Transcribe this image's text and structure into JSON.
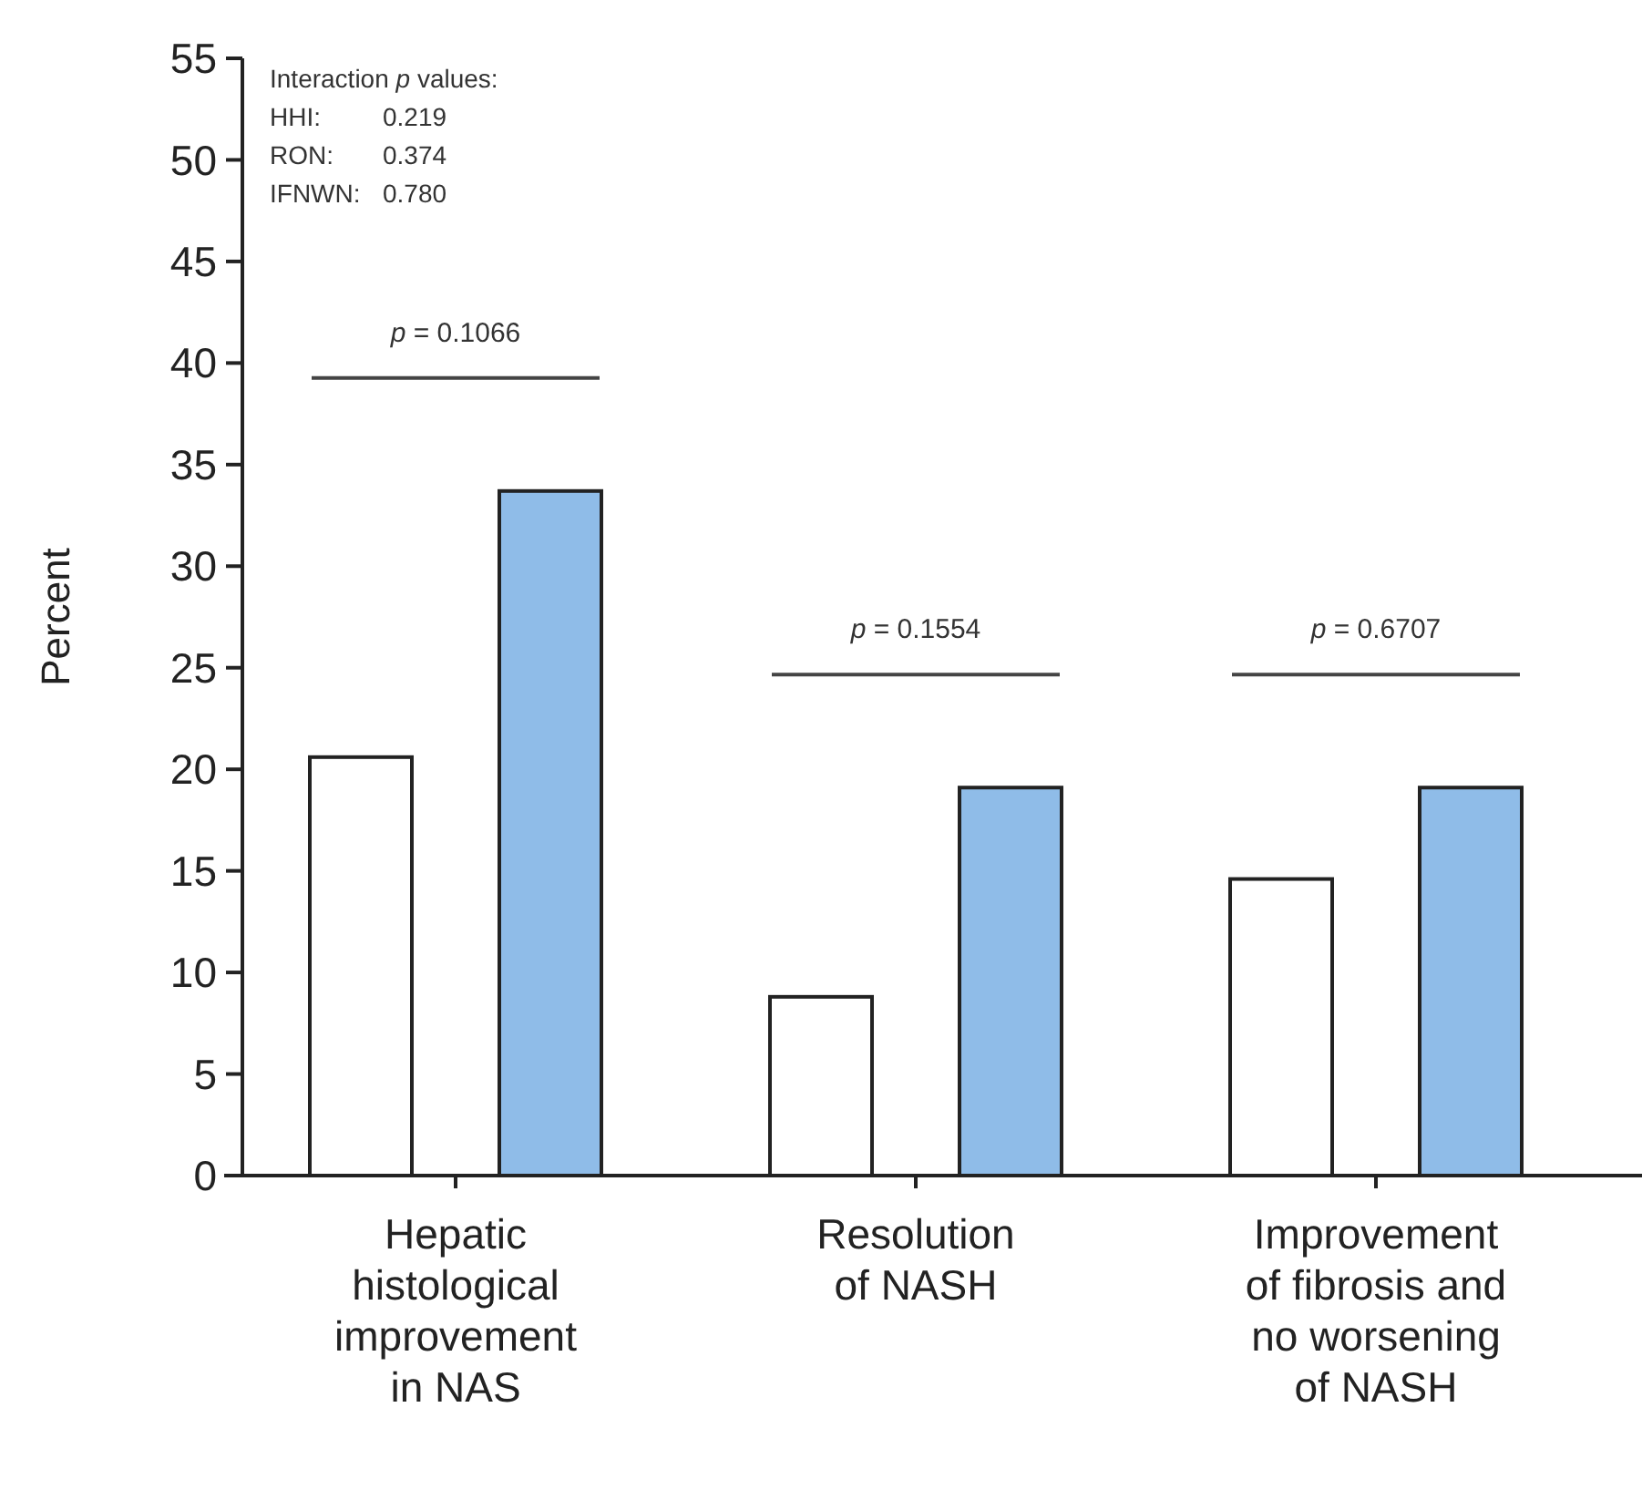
{
  "chart_data": {
    "type": "bar",
    "ylabel": "Percent",
    "categories": [
      "Hepatic\nhistological\nimprovement\nin NAS",
      "Resolution\nof NASH",
      "Improvement\nof fibrosis and\nno worsening\nof NASH"
    ],
    "series": [
      {
        "color": "#ffffff",
        "values": [
          20.6,
          8.8,
          14.6
        ]
      },
      {
        "color": "#8fbce8",
        "values": [
          33.7,
          19.1,
          19.1
        ]
      }
    ],
    "ylim": [
      0,
      55
    ],
    "yticks": [
      0,
      5,
      10,
      15,
      20,
      25,
      30,
      35,
      40,
      45,
      50,
      55
    ],
    "grid": false,
    "annotations": [
      "Interaction p values:",
      "HHI: 0.219",
      "RON: 0.374",
      "IFNWN: 0.780",
      "p = 0.1066",
      "p = 0.1554",
      "p = 0.6707"
    ]
  }
}
